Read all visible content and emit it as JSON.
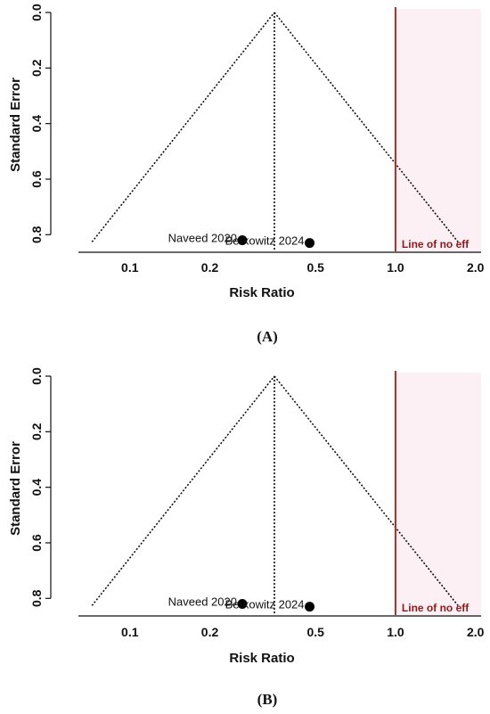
{
  "chart_data": [
    {
      "type": "scatter",
      "title": "",
      "xlabel": "Risk Ratio",
      "ylabel": "Standard Error",
      "xscale": "log",
      "xlim": [
        0.064,
        2.1
      ],
      "ylim": [
        0.86,
        0.0
      ],
      "xticks": [
        {
          "v": 0.1,
          "label": "0.1"
        },
        {
          "v": 0.2,
          "label": "0.2"
        },
        {
          "v": 0.5,
          "label": "0.5"
        },
        {
          "v": 1.0,
          "label": "1.0"
        },
        {
          "v": 2.0,
          "label": "2.0"
        }
      ],
      "yticks": [
        {
          "v": 0.0,
          "label": "0.0"
        },
        {
          "v": 0.2,
          "label": "0.2"
        },
        {
          "v": 0.4,
          "label": "0.4"
        },
        {
          "v": 0.6,
          "label": "0.6"
        },
        {
          "v": 0.8,
          "label": "0.8"
        }
      ],
      "funnel": {
        "center": 0.35,
        "left": 0.072,
        "right": 1.72,
        "se_max": 0.826
      },
      "points": [
        {
          "label": "Naveed 2020",
          "x": 0.265,
          "y": 0.82
        },
        {
          "label": "Berkowitz 2024",
          "x": 0.475,
          "y": 0.83
        }
      ],
      "reference_line": {
        "x": 1.0,
        "label": "Line of no eff",
        "color": "#a0342b"
      },
      "panel_label": "(A)"
    },
    {
      "type": "scatter",
      "title": "",
      "xlabel": "Risk Ratio",
      "ylabel": "Standard Error",
      "xscale": "log",
      "xlim": [
        0.064,
        2.1
      ],
      "ylim": [
        0.86,
        0.0
      ],
      "xticks": [
        {
          "v": 0.1,
          "label": "0.1"
        },
        {
          "v": 0.2,
          "label": "0.2"
        },
        {
          "v": 0.5,
          "label": "0.5"
        },
        {
          "v": 1.0,
          "label": "1.0"
        },
        {
          "v": 2.0,
          "label": "2.0"
        }
      ],
      "yticks": [
        {
          "v": 0.0,
          "label": "0.0"
        },
        {
          "v": 0.2,
          "label": "0.2"
        },
        {
          "v": 0.4,
          "label": "0.4"
        },
        {
          "v": 0.6,
          "label": "0.6"
        },
        {
          "v": 0.8,
          "label": "0.8"
        }
      ],
      "funnel": {
        "center": 0.35,
        "left": 0.072,
        "right": 1.72,
        "se_max": 0.826
      },
      "points": [
        {
          "label": "Naveed 2020",
          "x": 0.265,
          "y": 0.82
        },
        {
          "label": "Berkowitz 2024",
          "x": 0.475,
          "y": 0.83
        }
      ],
      "reference_line": {
        "x": 1.0,
        "label": "Line of no eff",
        "color": "#a0342b"
      },
      "panel_label": "(B)"
    }
  ]
}
